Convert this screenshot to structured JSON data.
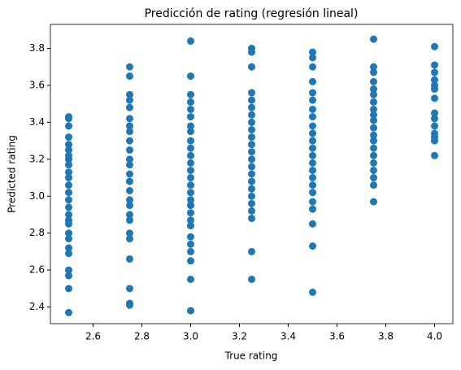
{
  "chart_data": {
    "type": "scatter",
    "title": "Predicción de rating (regresión lineal)",
    "xlabel": "True rating",
    "ylabel": "Predicted rating",
    "color": "#1f77b4",
    "xlim": [
      2.425,
      4.075
    ],
    "ylim": [
      2.31,
      3.93
    ],
    "xticks": [
      2.6,
      2.8,
      {
        "value": 3.0,
        "label": "3.0"
      },
      3.2,
      3.4,
      3.6,
      3.8,
      {
        "value": 4.0,
        "label": "4.0"
      }
    ],
    "yticks": [
      2.4,
      2.6,
      2.8,
      {
        "value": 3.0,
        "label": "3.0"
      },
      3.2,
      3.4,
      3.6,
      3.8
    ],
    "x": [
      2.5,
      2.5,
      2.5,
      2.5,
      2.5,
      2.5,
      2.5,
      2.5,
      2.5,
      2.5,
      2.5,
      2.5,
      2.5,
      2.5,
      2.5,
      2.5,
      2.5,
      2.5,
      2.5,
      2.5,
      2.5,
      2.5,
      2.5,
      2.5,
      2.5,
      2.5,
      2.75,
      2.75,
      2.75,
      2.75,
      2.75,
      2.75,
      2.75,
      2.75,
      2.75,
      2.75,
      2.75,
      2.75,
      2.75,
      2.75,
      2.75,
      2.75,
      2.75,
      2.75,
      2.75,
      2.75,
      2.75,
      2.75,
      2.75,
      2.75,
      2.75,
      3,
      3,
      3,
      3,
      3,
      3,
      3,
      3,
      3,
      3,
      3,
      3,
      3,
      3,
      3,
      3,
      3,
      3,
      3,
      3,
      3,
      3,
      3,
      3,
      3,
      3,
      3,
      3.25,
      3.25,
      3.25,
      3.25,
      3.25,
      3.25,
      3.25,
      3.25,
      3.25,
      3.25,
      3.25,
      3.25,
      3.25,
      3.25,
      3.25,
      3.25,
      3.25,
      3.25,
      3.25,
      3.25,
      3.25,
      3.25,
      3.25,
      3.5,
      3.5,
      3.5,
      3.5,
      3.5,
      3.5,
      3.5,
      3.5,
      3.5,
      3.5,
      3.5,
      3.5,
      3.5,
      3.5,
      3.5,
      3.5,
      3.5,
      3.5,
      3.5,
      3.5,
      3.5,
      3.5,
      3.5,
      3.75,
      3.75,
      3.75,
      3.75,
      3.75,
      3.75,
      3.75,
      3.75,
      3.75,
      3.75,
      3.75,
      3.75,
      3.75,
      3.75,
      3.75,
      3.75,
      3.75,
      3.75,
      3.75,
      3.75,
      4,
      4,
      4,
      4,
      4,
      4,
      4,
      4,
      4,
      4,
      4,
      4,
      4,
      4
    ],
    "y": [
      3.43,
      3.42,
      3.38,
      3.32,
      3.28,
      3.25,
      3.22,
      3.2,
      3.17,
      3.13,
      3.1,
      3.06,
      3.02,
      2.98,
      2.94,
      2.9,
      2.87,
      2.85,
      2.8,
      2.77,
      2.72,
      2.69,
      2.6,
      2.57,
      2.5,
      2.37,
      3.7,
      3.65,
      3.55,
      3.52,
      3.48,
      3.42,
      3.38,
      3.35,
      3.3,
      3.25,
      3.2,
      3.17,
      3.12,
      3.08,
      3.03,
      2.98,
      2.95,
      2.9,
      2.87,
      2.8,
      2.77,
      2.66,
      2.5,
      2.42,
      2.41,
      3.84,
      3.65,
      3.55,
      3.51,
      3.47,
      3.43,
      3.38,
      3.35,
      3.3,
      3.26,
      3.22,
      3.18,
      3.14,
      3.1,
      3.06,
      3.02,
      2.98,
      2.95,
      2.91,
      2.87,
      2.84,
      2.78,
      2.74,
      2.7,
      2.65,
      2.55,
      2.38,
      3.8,
      3.78,
      3.7,
      3.56,
      3.52,
      3.48,
      3.44,
      3.4,
      3.36,
      3.32,
      3.28,
      3.24,
      3.2,
      3.16,
      3.12,
      3.08,
      3.04,
      3.0,
      2.96,
      2.92,
      2.88,
      2.7,
      2.55,
      3.78,
      3.75,
      3.7,
      3.62,
      3.56,
      3.52,
      3.47,
      3.43,
      3.38,
      3.34,
      3.3,
      3.26,
      3.22,
      3.18,
      3.14,
      3.1,
      3.06,
      3.02,
      2.97,
      2.93,
      2.85,
      2.73,
      2.48,
      3.85,
      3.7,
      3.67,
      3.62,
      3.58,
      3.55,
      3.51,
      3.47,
      3.44,
      3.41,
      3.37,
      3.33,
      3.3,
      3.26,
      3.22,
      3.18,
      3.14,
      3.1,
      3.06,
      2.97,
      3.81,
      3.71,
      3.67,
      3.63,
      3.6,
      3.58,
      3.53,
      3.45,
      3.42,
      3.38,
      3.34,
      3.32,
      3.3,
      3.22
    ]
  }
}
